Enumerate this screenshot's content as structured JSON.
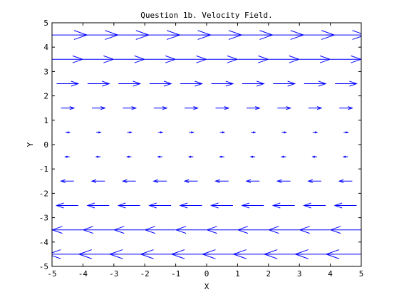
{
  "chart_data": {
    "type": "quiver",
    "title": "Question 1b. Velocity Field.",
    "xlabel": "X",
    "ylabel": "Y",
    "xlim": [
      -5,
      5
    ],
    "ylim": [
      -5,
      5
    ],
    "x_ticks": [
      -5,
      -4,
      -3,
      -2,
      -1,
      0,
      1,
      2,
      3,
      4,
      5
    ],
    "y_ticks": [
      -5,
      -4,
      -3,
      -2,
      -1,
      0,
      1,
      2,
      3,
      4,
      5
    ],
    "grid": false,
    "arrow_color": "#0000ff",
    "description": "Velocity u = y, v = 0 sampled on a 10x10 grid",
    "x_grid": [
      -4.5,
      -3.5,
      -2.5,
      -1.5,
      -0.5,
      0.5,
      1.5,
      2.5,
      3.5,
      4.5
    ],
    "y_grid": [
      -4.5,
      -3.5,
      -2.5,
      -1.5,
      -0.5,
      0.5,
      1.5,
      2.5,
      3.5,
      4.5
    ],
    "u_per_row": [
      -4.5,
      -3.5,
      -2.5,
      -1.5,
      -0.5,
      0.5,
      1.5,
      2.5,
      3.5,
      4.5
    ],
    "v": 0,
    "arrow_scale": 0.28
  }
}
